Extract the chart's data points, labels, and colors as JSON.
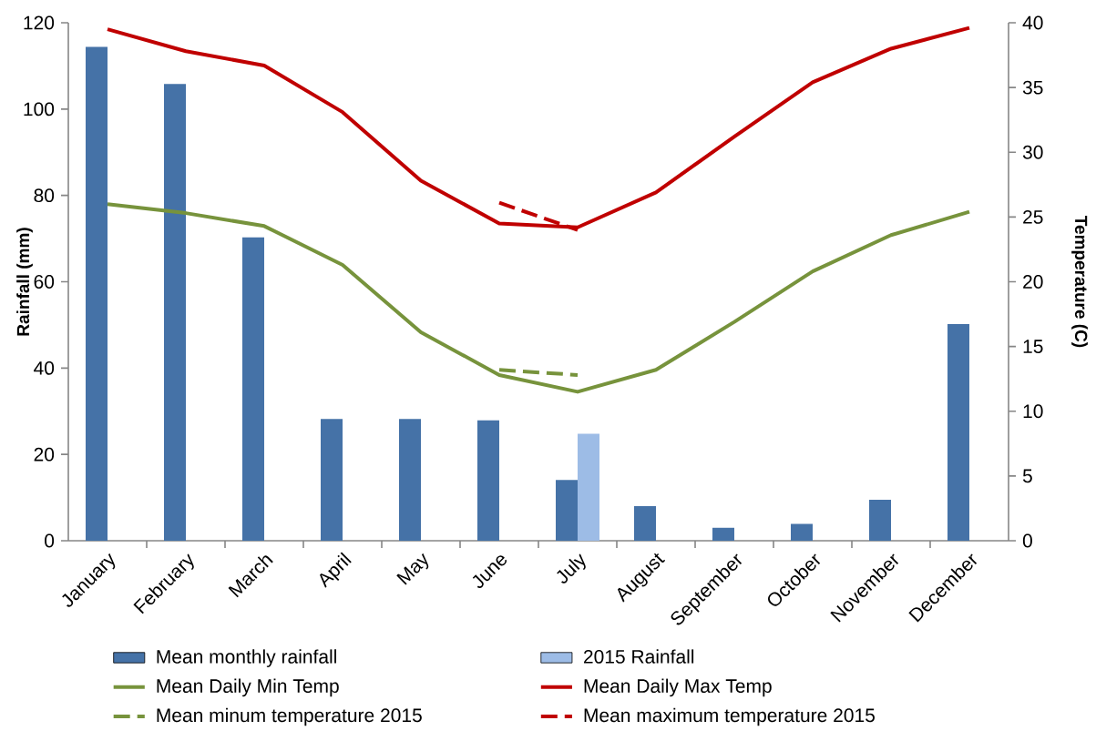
{
  "chart_data": {
    "type": "bar",
    "ylabel": "Rainfall (mm)",
    "y2label": "Temperature (C)",
    "categories": [
      "January",
      "February",
      "March",
      "April",
      "May",
      "June",
      "July",
      "August",
      "September",
      "October",
      "November",
      "December"
    ],
    "ylim": [
      0,
      120
    ],
    "yticks": [
      0,
      20,
      40,
      60,
      80,
      100,
      120
    ],
    "y2lim": [
      0,
      40
    ],
    "y2ticks": [
      0,
      5,
      10,
      15,
      20,
      25,
      30,
      35,
      40
    ],
    "legend": "bottom",
    "marker": "none",
    "series": [
      {
        "name": "Mean monthly rainfall",
        "color": "#4572a7",
        "values": [
          114.4,
          105.8,
          70.3,
          28.2,
          28.2,
          27.9,
          14.1,
          8.0,
          3.0,
          3.9,
          9.5,
          50.2
        ]
      },
      {
        "name": "2015 Rainfall",
        "color": "#9dbce6",
        "values": [
          null,
          null,
          null,
          null,
          null,
          null,
          24.8,
          null,
          null,
          null,
          null,
          null
        ]
      },
      {
        "name": "Mean Daily Min Temp",
        "type": "line",
        "axis": "y2",
        "color": "#77933c",
        "line_style": "solid",
        "values": [
          26.0,
          25.3,
          24.3,
          21.3,
          16.1,
          12.8,
          11.5,
          13.2,
          16.9,
          20.8,
          23.6,
          25.4
        ]
      },
      {
        "name": "Mean Daily Max Temp",
        "type": "line",
        "axis": "y2",
        "color": "#c00000",
        "line_style": "solid",
        "values": [
          39.5,
          37.8,
          36.7,
          33.1,
          27.8,
          24.5,
          24.2,
          26.9,
          31.2,
          35.4,
          38.0,
          39.6
        ]
      },
      {
        "name": "Mean minum temperature 2015",
        "type": "line",
        "axis": "y2",
        "color": "#77933c",
        "line_style": "dashed",
        "values": [
          null,
          null,
          null,
          null,
          null,
          13.2,
          12.8,
          null,
          null,
          null,
          null,
          null
        ]
      },
      {
        "name": "Mean maximum temperature 2015",
        "type": "line",
        "axis": "y2",
        "color": "#c00000",
        "line_style": "dashed",
        "values": [
          null,
          null,
          null,
          null,
          null,
          26.1,
          24.0,
          null,
          null,
          null,
          null,
          null
        ]
      }
    ]
  }
}
